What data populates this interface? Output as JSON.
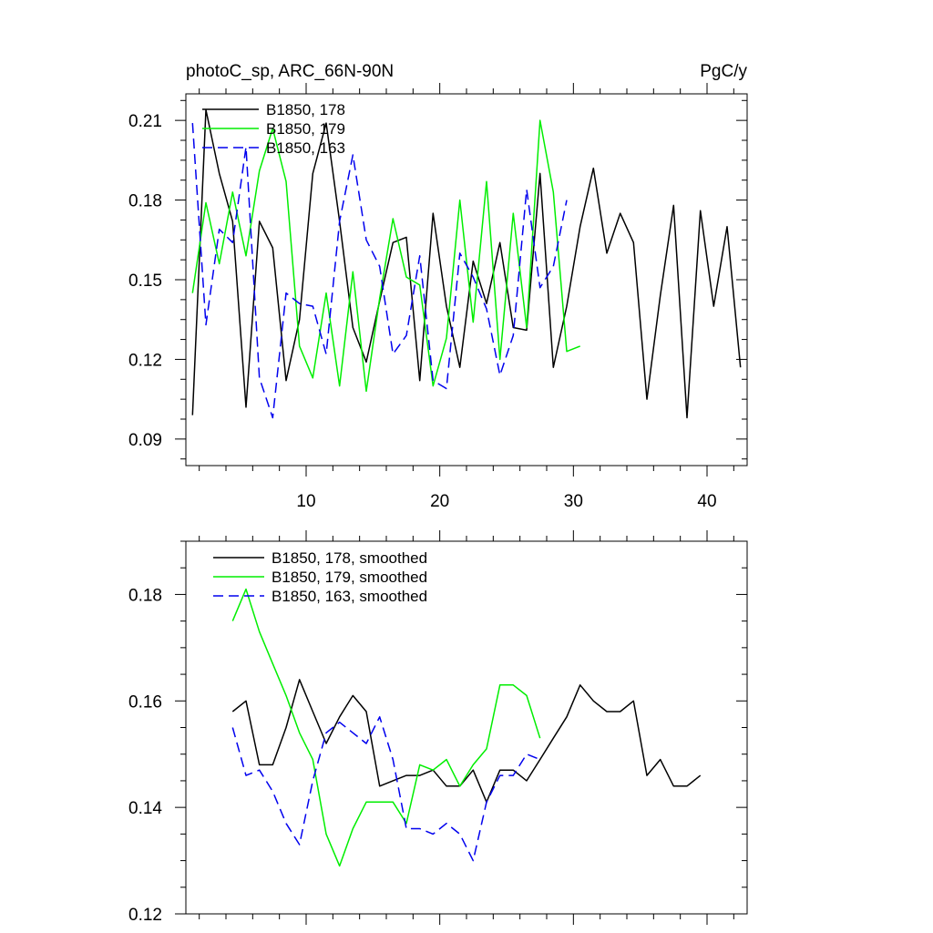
{
  "chart_data": [
    {
      "type": "line",
      "title_left": "photoC_sp, ARC_66N-90N",
      "title_right": "PgC/y",
      "xlabel": "",
      "ylabel": "",
      "xlim": [
        1,
        43
      ],
      "ylim": [
        0.08,
        0.22
      ],
      "xticks": [
        10,
        20,
        30,
        40
      ],
      "xtick_labels": [
        "10",
        "20",
        "30",
        "40"
      ],
      "yticks": [
        0.09,
        0.12,
        0.15,
        0.18,
        0.21
      ],
      "ytick_labels": [
        "0.09",
        "0.12",
        "0.15",
        "0.18",
        "0.21"
      ],
      "legend_position": "top-left",
      "series": [
        {
          "name": "B1850, 178",
          "color": "#000000",
          "dash": "solid",
          "x": [
            1.5,
            2.5,
            3.5,
            4.5,
            5.5,
            6.5,
            7.5,
            8.5,
            9.5,
            10.5,
            11.5,
            12.5,
            13.5,
            14.5,
            15.5,
            16.5,
            17.5,
            18.5,
            19.5,
            20.5,
            21.5,
            22.5,
            23.5,
            24.5,
            25.5,
            26.5,
            27.5,
            28.5,
            29.5,
            30.5,
            31.5,
            32.5,
            33.5,
            34.5,
            35.5,
            36.5,
            37.5,
            38.5,
            39.5,
            40.5,
            41.5,
            42.5
          ],
          "y": [
            0.099,
            0.214,
            0.19,
            0.172,
            0.102,
            0.172,
            0.162,
            0.112,
            0.135,
            0.19,
            0.209,
            0.172,
            0.132,
            0.119,
            0.142,
            0.164,
            0.166,
            0.112,
            0.175,
            0.14,
            0.117,
            0.157,
            0.141,
            0.164,
            0.132,
            0.131,
            0.19,
            0.117,
            0.14,
            0.17,
            0.192,
            0.16,
            0.175,
            0.164,
            0.105,
            0.144,
            0.178,
            0.098,
            0.176,
            0.14,
            0.17,
            0.117
          ]
        },
        {
          "name": "B1850, 179",
          "color": "#00ee00",
          "dash": "solid",
          "x": [
            1.5,
            2.5,
            3.5,
            4.5,
            5.5,
            6.5,
            7.5,
            8.5,
            9.5,
            10.5,
            11.5,
            12.5,
            13.5,
            14.5,
            15.5,
            16.5,
            17.5,
            18.5,
            19.5,
            20.5,
            21.5,
            22.5,
            23.5,
            24.5,
            25.5,
            26.5,
            27.5,
            28.5,
            29.5,
            30.5
          ],
          "y": [
            0.145,
            0.179,
            0.156,
            0.183,
            0.159,
            0.191,
            0.207,
            0.187,
            0.125,
            0.113,
            0.145,
            0.11,
            0.153,
            0.108,
            0.143,
            0.173,
            0.151,
            0.148,
            0.11,
            0.128,
            0.18,
            0.134,
            0.187,
            0.12,
            0.175,
            0.132,
            0.21,
            0.183,
            0.123,
            0.125
          ]
        },
        {
          "name": "B1850, 163",
          "color": "#0000ee",
          "dash": "dashed",
          "x": [
            1.5,
            2.5,
            3.5,
            4.5,
            5.5,
            6.5,
            7.5,
            8.5,
            9.5,
            10.5,
            11.5,
            12.5,
            13.5,
            14.5,
            15.5,
            16.5,
            17.5,
            18.5,
            19.5,
            20.5,
            21.5,
            22.5,
            23.5,
            24.5,
            25.5,
            26.5,
            27.5,
            28.5,
            29.5
          ],
          "y": [
            0.209,
            0.133,
            0.169,
            0.164,
            0.2,
            0.113,
            0.098,
            0.145,
            0.141,
            0.14,
            0.122,
            0.172,
            0.197,
            0.165,
            0.155,
            0.122,
            0.129,
            0.159,
            0.112,
            0.109,
            0.16,
            0.151,
            0.139,
            0.114,
            0.129,
            0.184,
            0.147,
            0.155,
            0.18
          ]
        }
      ]
    },
    {
      "type": "line",
      "xlabel": "",
      "ylabel": "",
      "xlim": [
        1,
        43
      ],
      "ylim": [
        0.12,
        0.19
      ],
      "xticks": [
        10,
        20,
        30,
        40
      ],
      "yticks": [
        0.12,
        0.14,
        0.16,
        0.18
      ],
      "ytick_labels": [
        "0.12",
        "0.14",
        "0.16",
        "0.18"
      ],
      "legend_position": "top-left",
      "series": [
        {
          "name": "B1850, 178, smoothed",
          "color": "#000000",
          "dash": "solid",
          "x": [
            4.5,
            5.5,
            6.5,
            7.5,
            8.5,
            9.5,
            10.5,
            11.5,
            12.5,
            13.5,
            14.5,
            15.5,
            16.5,
            17.5,
            18.5,
            19.5,
            20.5,
            21.5,
            22.5,
            23.5,
            24.5,
            25.5,
            26.5,
            27.5,
            28.5,
            29.5,
            30.5,
            31.5,
            32.5,
            33.5,
            34.5,
            35.5,
            36.5,
            37.5,
            38.5,
            39.5
          ],
          "y": [
            0.158,
            0.16,
            0.148,
            0.148,
            0.155,
            0.164,
            0.158,
            0.152,
            0.157,
            0.161,
            0.158,
            0.144,
            0.145,
            0.146,
            0.146,
            0.147,
            0.144,
            0.144,
            0.147,
            0.141,
            0.147,
            0.147,
            0.145,
            0.149,
            0.153,
            0.157,
            0.163,
            0.16,
            0.158,
            0.158,
            0.16,
            0.146,
            0.149,
            0.144,
            0.144,
            0.146
          ]
        },
        {
          "name": "B1850, 179, smoothed",
          "color": "#00ee00",
          "dash": "solid",
          "x": [
            4.5,
            5.5,
            6.5,
            7.5,
            8.5,
            9.5,
            10.5,
            11.5,
            12.5,
            13.5,
            14.5,
            15.5,
            16.5,
            17.5,
            18.5,
            19.5,
            20.5,
            21.5,
            22.5,
            23.5,
            24.5,
            25.5,
            26.5,
            27.5
          ],
          "y": [
            0.175,
            0.181,
            0.173,
            0.167,
            0.161,
            0.154,
            0.149,
            0.135,
            0.129,
            0.136,
            0.141,
            0.141,
            0.141,
            0.137,
            0.148,
            0.147,
            0.149,
            0.144,
            0.148,
            0.151,
            0.163,
            0.163,
            0.161,
            0.153
          ]
        },
        {
          "name": "B1850, 163, smoothed",
          "color": "#0000ee",
          "dash": "dashed",
          "x": [
            4.5,
            5.5,
            6.5,
            7.5,
            8.5,
            9.5,
            10.5,
            11.5,
            12.5,
            13.5,
            14.5,
            15.5,
            16.5,
            17.5,
            18.5,
            19.5,
            20.5,
            21.5,
            22.5,
            23.5,
            24.5,
            25.5,
            26.5,
            27.5
          ],
          "y": [
            0.155,
            0.146,
            0.147,
            0.143,
            0.137,
            0.133,
            0.145,
            0.154,
            0.156,
            0.154,
            0.152,
            0.157,
            0.149,
            0.136,
            0.136,
            0.135,
            0.137,
            0.135,
            0.13,
            0.141,
            0.146,
            0.146,
            0.15,
            0.149
          ]
        }
      ]
    }
  ]
}
